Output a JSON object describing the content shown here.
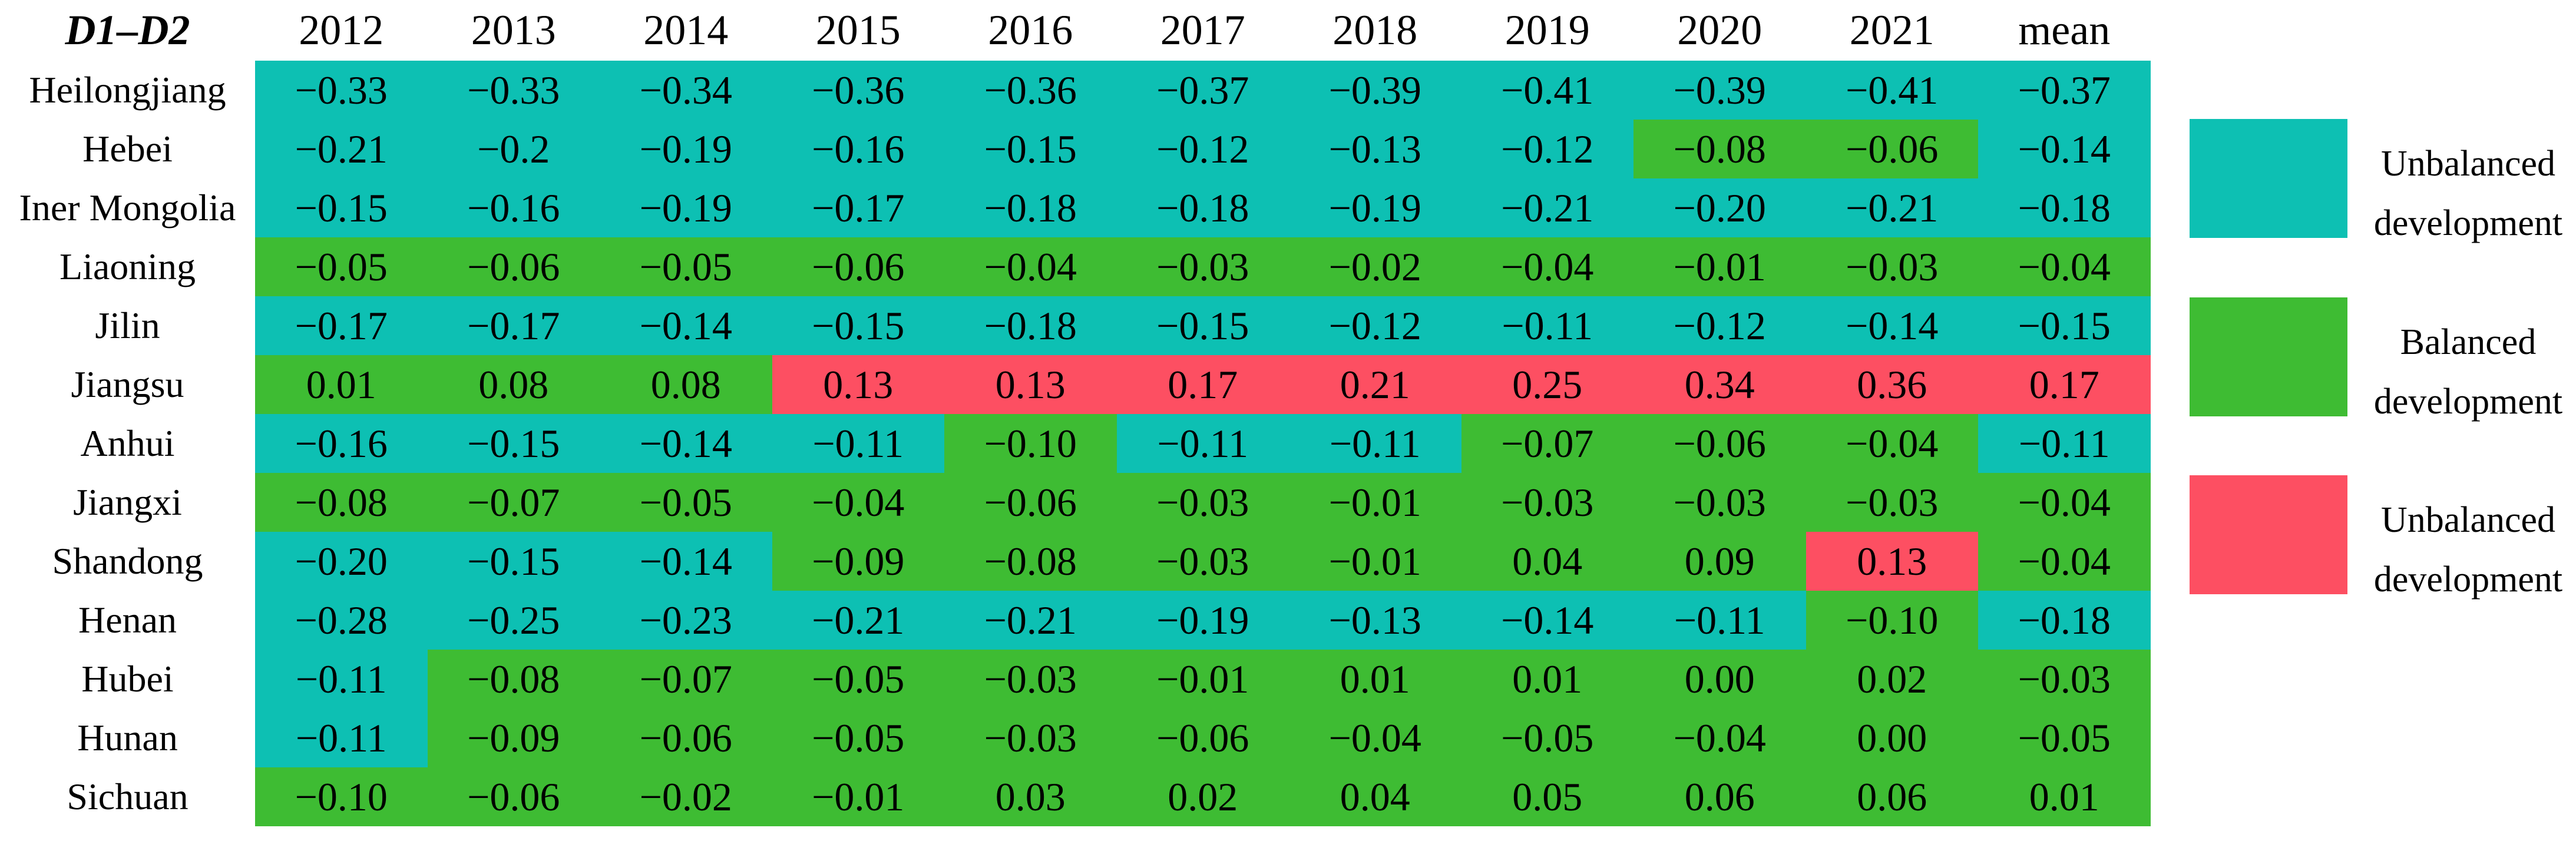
{
  "chart_data": {
    "type": "heatmap",
    "title": "D1–D2",
    "x": [
      "2012",
      "2013",
      "2014",
      "2015",
      "2016",
      "2017",
      "2018",
      "2019",
      "2020",
      "2021",
      "mean"
    ],
    "y": [
      "Heilongjiang",
      "Hebei",
      "Iner Mongolia",
      "Liaoning",
      "Jilin",
      "Jiangsu",
      "Anhui",
      "Jiangxi",
      "Shandong",
      "Henan",
      "Hubei",
      "Hunan",
      "Sichuan"
    ],
    "values": [
      [
        -0.33,
        -0.33,
        -0.34,
        -0.36,
        -0.36,
        -0.37,
        -0.39,
        -0.41,
        -0.39,
        -0.41,
        -0.37
      ],
      [
        -0.21,
        -0.2,
        -0.19,
        -0.16,
        -0.15,
        -0.12,
        -0.13,
        -0.12,
        -0.08,
        -0.06,
        -0.14
      ],
      [
        -0.15,
        -0.16,
        -0.19,
        -0.17,
        -0.18,
        -0.18,
        -0.19,
        -0.21,
        -0.2,
        -0.21,
        -0.18
      ],
      [
        -0.05,
        -0.06,
        -0.05,
        -0.06,
        -0.04,
        -0.03,
        -0.02,
        -0.04,
        -0.01,
        -0.03,
        -0.04
      ],
      [
        -0.17,
        -0.17,
        -0.14,
        -0.15,
        -0.18,
        -0.15,
        -0.12,
        -0.11,
        -0.12,
        -0.14,
        -0.15
      ],
      [
        0.01,
        0.08,
        0.08,
        0.13,
        0.13,
        0.17,
        0.21,
        0.25,
        0.34,
        0.36,
        0.17
      ],
      [
        -0.16,
        -0.15,
        -0.14,
        -0.11,
        -0.1,
        -0.11,
        -0.11,
        -0.07,
        -0.06,
        -0.04,
        -0.11
      ],
      [
        -0.08,
        -0.07,
        -0.05,
        -0.04,
        -0.06,
        -0.03,
        -0.01,
        -0.03,
        -0.03,
        -0.03,
        -0.04
      ],
      [
        -0.2,
        -0.15,
        -0.14,
        -0.09,
        -0.08,
        -0.03,
        -0.01,
        0.04,
        0.09,
        0.13,
        -0.04
      ],
      [
        -0.28,
        -0.25,
        -0.23,
        -0.21,
        -0.21,
        -0.19,
        -0.13,
        -0.14,
        -0.11,
        -0.1,
        -0.18
      ],
      [
        -0.11,
        -0.08,
        -0.07,
        -0.05,
        -0.03,
        -0.01,
        0.01,
        0.01,
        0.0,
        0.02,
        -0.03
      ],
      [
        -0.11,
        -0.09,
        -0.06,
        -0.05,
        -0.03,
        -0.06,
        -0.04,
        -0.05,
        -0.04,
        0.0,
        -0.05
      ],
      [
        -0.1,
        -0.06,
        -0.02,
        -0.01,
        0.03,
        0.02,
        0.04,
        0.05,
        0.06,
        0.06,
        0.01
      ]
    ],
    "display": [
      [
        "−0.33",
        "−0.33",
        "−0.34",
        "−0.36",
        "−0.36",
        "−0.37",
        "−0.39",
        "−0.41",
        "−0.39",
        "−0.41",
        "−0.37"
      ],
      [
        "−0.21",
        "−0.2",
        "−0.19",
        "−0.16",
        "−0.15",
        "−0.12",
        "−0.13",
        "−0.12",
        "−0.08",
        "−0.06",
        "−0.14"
      ],
      [
        "−0.15",
        "−0.16",
        "−0.19",
        "−0.17",
        "−0.18",
        "−0.18",
        "−0.19",
        "−0.21",
        "−0.20",
        "−0.21",
        "−0.18"
      ],
      [
        "−0.05",
        "−0.06",
        "−0.05",
        "−0.06",
        "−0.04",
        "−0.03",
        "−0.02",
        "−0.04",
        "−0.01",
        "−0.03",
        "−0.04"
      ],
      [
        "−0.17",
        "−0.17",
        "−0.14",
        "−0.15",
        "−0.18",
        "−0.15",
        "−0.12",
        "−0.11",
        "−0.12",
        "−0.14",
        "−0.15"
      ],
      [
        "0.01",
        "0.08",
        "0.08",
        "0.13",
        "0.13",
        "0.17",
        "0.21",
        "0.25",
        "0.34",
        "0.36",
        "0.17"
      ],
      [
        "−0.16",
        "−0.15",
        "−0.14",
        "−0.11",
        "−0.10",
        "−0.11",
        "−0.11",
        "−0.07",
        "−0.06",
        "−0.04",
        "−0.11"
      ],
      [
        "−0.08",
        "−0.07",
        "−0.05",
        "−0.04",
        "−0.06",
        "−0.03",
        "−0.01",
        "−0.03",
        "−0.03",
        "−0.03",
        "−0.04"
      ],
      [
        "−0.20",
        "−0.15",
        "−0.14",
        "−0.09",
        "−0.08",
        "−0.03",
        "−0.01",
        "0.04",
        "0.09",
        "0.13",
        "−0.04"
      ],
      [
        "−0.28",
        "−0.25",
        "−0.23",
        "−0.21",
        "−0.21",
        "−0.19",
        "−0.13",
        "−0.14",
        "−0.11",
        "−0.10",
        "−0.18"
      ],
      [
        "−0.11",
        "−0.08",
        "−0.07",
        "−0.05",
        "−0.03",
        "−0.01",
        "0.01",
        "0.01",
        "0.00",
        "0.02",
        "−0.03"
      ],
      [
        "−0.11",
        "−0.09",
        "−0.06",
        "−0.05",
        "−0.03",
        "−0.06",
        "−0.04",
        "−0.05",
        "−0.04",
        "0.00",
        "−0.05"
      ],
      [
        "−0.10",
        "−0.06",
        "−0.02",
        "−0.01",
        "0.03",
        "0.02",
        "0.04",
        "0.05",
        "0.06",
        "0.06",
        "0.01"
      ]
    ],
    "cell_classes": [
      "ttttttttttt",
      "ttttttttggt",
      "ttttttttttt",
      "ggggggggggg",
      "ttttttttttt",
      "gggrrrrrrrr",
      "ttttgttgggt",
      "ggggggggggg",
      "tttggggggrg",
      "tttttttttgt",
      "tgggggggggg",
      "tgggggggggg",
      "ggggggggggg"
    ],
    "legend_position": "right",
    "grid": false
  },
  "cell_colors": {
    "t": "#0dc0b3",
    "g": "#3ebc33",
    "r": "#fd4f62"
  },
  "legend": {
    "items": [
      {
        "key": "t",
        "line1": "Unbalanced",
        "line2": "development"
      },
      {
        "key": "g",
        "line1": "Balanced",
        "line2": "development"
      },
      {
        "key": "r",
        "line1": "Unbalanced",
        "line2": "development"
      }
    ]
  }
}
